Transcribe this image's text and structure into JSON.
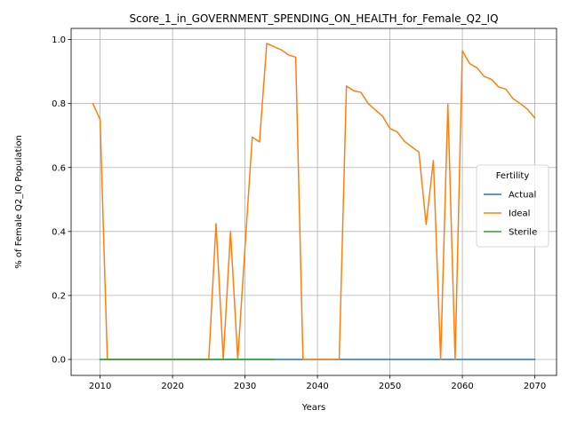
{
  "chart_data": {
    "type": "line",
    "title": "Score_1_in_GOVERNMENT_SPENDING_ON_HEALTH_for_Female_Q2_IQ",
    "xlabel": "Years",
    "ylabel": "% of Female Q2_IQ Population",
    "xlim": [
      2006,
      2073
    ],
    "ylim": [
      -0.05,
      1.035
    ],
    "xticks": [
      2010,
      2020,
      2030,
      2040,
      2050,
      2060,
      2070
    ],
    "yticks": [
      0.0,
      0.2,
      0.4,
      0.6,
      0.8,
      1.0
    ],
    "xtick_labels": [
      "2010",
      "2020",
      "2030",
      "2040",
      "2050",
      "2060",
      "2070"
    ],
    "ytick_labels": [
      "0.0",
      "0.2",
      "0.4",
      "0.6",
      "0.8",
      "1.0"
    ],
    "grid": true,
    "legend": {
      "title": "Fertility",
      "placement": "center-right"
    },
    "series": [
      {
        "name": "Actual",
        "color": "#1f77b4",
        "x": [
          2010,
          2070
        ],
        "y": [
          0.0,
          0.0
        ]
      },
      {
        "name": "Ideal",
        "color": "#ff7f0e",
        "x": [
          2009,
          2010,
          2011,
          2012,
          2013,
          2014,
          2015,
          2016,
          2017,
          2018,
          2019,
          2020,
          2021,
          2022,
          2023,
          2024,
          2025,
          2026,
          2027,
          2028,
          2029,
          2030,
          2031,
          2032,
          2033,
          2034,
          2035,
          2036,
          2037,
          2038,
          2039,
          2040,
          2041,
          2042,
          2043,
          2044,
          2045,
          2046,
          2047,
          2048,
          2049,
          2050,
          2051,
          2052,
          2053,
          2054,
          2055,
          2056,
          2057,
          2058,
          2059,
          2060,
          2061,
          2062,
          2063,
          2064,
          2065,
          2066,
          2067,
          2068,
          2069,
          2070
        ],
        "y": [
          0.8,
          0.75,
          0.0,
          0.0,
          0.0,
          0.0,
          0.0,
          0.0,
          0.0,
          0.0,
          0.0,
          0.0,
          0.0,
          0.0,
          0.0,
          0.0,
          0.0,
          0.425,
          0.0,
          0.4,
          0.0,
          0.35,
          0.695,
          0.68,
          0.988,
          0.978,
          0.968,
          0.952,
          0.945,
          0.0,
          0.0,
          0.0,
          0.0,
          0.0,
          0.0,
          0.855,
          0.84,
          0.835,
          0.8,
          0.78,
          0.76,
          0.722,
          0.712,
          0.682,
          0.665,
          0.648,
          0.422,
          0.622,
          0.0,
          0.798,
          0.0,
          0.965,
          0.925,
          0.912,
          0.885,
          0.876,
          0.852,
          0.845,
          0.815,
          0.8,
          0.782,
          0.755
        ]
      },
      {
        "name": "Sterile",
        "color": "#2ca02c",
        "x": [
          2010,
          2034
        ],
        "y": [
          0.0,
          0.0
        ]
      }
    ]
  }
}
